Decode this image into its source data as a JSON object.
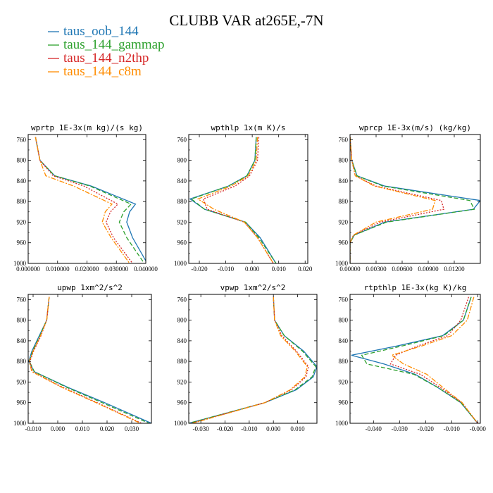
{
  "figure_title": "CLUBB VAR at265E,-7N",
  "legend": [
    {
      "label": "taus_oob_144",
      "color": "#1f77b4",
      "dash": "solid"
    },
    {
      "label": "taus_144_gammap",
      "color": "#2ca02c",
      "dash": "dashed"
    },
    {
      "label": "taus_144_n2thp",
      "color": "#d62728",
      "dash": "dotted"
    },
    {
      "label": "taus_144_c8m",
      "color": "#ff8c00",
      "dash": "dashdot"
    }
  ],
  "chart_data": [
    {
      "type": "line",
      "title": "wprtp  1E-3x(m kg)/(s kg)",
      "xlim": [
        0.0,
        0.04
      ],
      "ylim": [
        1000,
        750
      ],
      "xticks": [
        0.0,
        0.01,
        0.02,
        0.03,
        0.04
      ],
      "xtick_labels": [
        "0.000000",
        "0.010000",
        "0.020000",
        "0.030000",
        "0.040000"
      ],
      "yticks": [
        760,
        800,
        840,
        880,
        920,
        960,
        1000
      ],
      "ytick_labels": [
        "760",
        "800",
        "840",
        "880",
        "920",
        "960",
        "1000"
      ],
      "y": [
        755,
        800,
        830,
        850,
        885,
        900,
        920,
        950,
        1000
      ],
      "series": [
        {
          "name": "taus_oob_144",
          "values": [
            0.0025,
            0.004,
            0.009,
            0.0215,
            0.0365,
            0.0345,
            0.0335,
            0.0355,
            0.0405
          ]
        },
        {
          "name": "taus_144_gammap",
          "values": [
            0.0025,
            0.004,
            0.009,
            0.021,
            0.035,
            0.0325,
            0.031,
            0.0335,
            0.0395
          ]
        },
        {
          "name": "taus_144_n2thp",
          "values": [
            0.0025,
            0.004,
            0.0085,
            0.019,
            0.0305,
            0.028,
            0.0265,
            0.029,
            0.0355
          ]
        },
        {
          "name": "taus_144_c8m",
          "values": [
            0.0025,
            0.004,
            0.006,
            0.0155,
            0.0285,
            0.0262,
            0.0252,
            0.0282,
            0.0345
          ]
        }
      ]
    },
    {
      "type": "line",
      "title": "wpthlp  1x(m K)/s",
      "xlim": [
        -0.024,
        0.021
      ],
      "ylim": [
        1000,
        750
      ],
      "xticks": [
        -0.02,
        -0.01,
        0.0,
        0.01,
        0.02
      ],
      "xtick_labels": [
        "-0.020",
        "-0.010",
        "0.000",
        "0.010",
        "0.020"
      ],
      "yticks": [
        760,
        800,
        840,
        880,
        920,
        960,
        1000
      ],
      "ytick_labels": [
        "760",
        "800",
        "840",
        "880",
        "920",
        "960",
        "1000"
      ],
      "y": [
        755,
        800,
        830,
        850,
        875,
        895,
        920,
        950,
        1000
      ],
      "series": [
        {
          "name": "taus_oob_144",
          "values": [
            0.0015,
            0.001,
            -0.002,
            -0.009,
            -0.0235,
            -0.018,
            -0.0025,
            0.003,
            0.009
          ]
        },
        {
          "name": "taus_144_gammap",
          "values": [
            0.0015,
            0.001,
            -0.002,
            -0.009,
            -0.023,
            -0.018,
            -0.0025,
            0.0025,
            0.009
          ]
        },
        {
          "name": "taus_144_n2thp",
          "values": [
            0.0025,
            0.002,
            -0.001,
            -0.0065,
            -0.0185,
            -0.017,
            -0.003,
            0.002,
            0.008
          ]
        },
        {
          "name": "taus_144_c8m",
          "values": [
            0.002,
            0.0015,
            -0.0015,
            -0.008,
            -0.0205,
            -0.0145,
            -0.003,
            0.002,
            0.008
          ]
        }
      ]
    },
    {
      "type": "line",
      "title": "wprcp  1E-3x(m/s) (kg/kg)",
      "xlim": [
        0.0,
        0.015
      ],
      "ylim": [
        1000,
        750
      ],
      "xticks": [
        0.0,
        0.003,
        0.006,
        0.009,
        0.012
      ],
      "xtick_labels": [
        "0.00000",
        "0.00300",
        "0.00600",
        "0.00900",
        "0.01200"
      ],
      "yticks": [
        760,
        800,
        840,
        880,
        920,
        960,
        1000
      ],
      "ytick_labels": [
        "760",
        "800",
        "840",
        "880",
        "920",
        "960",
        "1000"
      ],
      "y": [
        755,
        800,
        830,
        850,
        878,
        895,
        920,
        945,
        960,
        1000
      ],
      "series": [
        {
          "name": "taus_oob_144",
          "values": [
            0.0,
            0.0002,
            0.0008,
            0.004,
            0.015,
            0.0142,
            0.004,
            0.0005,
            0.0,
            0.0
          ]
        },
        {
          "name": "taus_144_gammap",
          "values": [
            0.0,
            0.0002,
            0.0008,
            0.0038,
            0.0138,
            0.0143,
            0.0042,
            0.0005,
            0.0,
            0.0
          ]
        },
        {
          "name": "taus_144_n2thp",
          "values": [
            0.0,
            0.0002,
            0.0006,
            0.003,
            0.0105,
            0.0108,
            0.0035,
            0.0004,
            0.0,
            0.0
          ]
        },
        {
          "name": "taus_144_c8m",
          "values": [
            0.0,
            0.0002,
            0.0006,
            0.0028,
            0.0098,
            0.0095,
            0.003,
            0.0004,
            0.0,
            0.0
          ]
        }
      ]
    },
    {
      "type": "line",
      "title": "upwp  1xm^2/s^2",
      "xlim": [
        -0.012,
        0.038
      ],
      "ylim": [
        1000,
        750
      ],
      "xticks": [
        -0.01,
        0.0,
        0.01,
        0.02,
        0.03
      ],
      "xtick_labels": [
        "-0.010",
        "0.000",
        "0.010",
        "0.020",
        "0.030"
      ],
      "yticks": [
        760,
        800,
        840,
        880,
        920,
        960,
        1000
      ],
      "ytick_labels": [
        "760",
        "800",
        "840",
        "880",
        "920",
        "960",
        "1000"
      ],
      "y": [
        755,
        800,
        830,
        860,
        880,
        900,
        930,
        960,
        1000
      ],
      "series": [
        {
          "name": "taus_oob_144",
          "values": [
            -0.0035,
            -0.0045,
            -0.0075,
            -0.0105,
            -0.0118,
            -0.0095,
            0.004,
            0.019,
            0.038
          ]
        },
        {
          "name": "taus_144_gammap",
          "values": [
            -0.0035,
            -0.0045,
            -0.0072,
            -0.0102,
            -0.0115,
            -0.0095,
            0.0035,
            0.018,
            0.037
          ]
        },
        {
          "name": "taus_144_n2thp",
          "values": [
            -0.0035,
            -0.0045,
            -0.0068,
            -0.0098,
            -0.0113,
            -0.0102,
            0.002,
            0.016,
            0.034
          ]
        },
        {
          "name": "taus_144_c8m",
          "values": [
            -0.0035,
            -0.0045,
            -0.007,
            -0.01,
            -0.0116,
            -0.0105,
            0.0015,
            0.0155,
            0.0335
          ]
        }
      ]
    },
    {
      "type": "line",
      "title": "vpwp  1xm^2/s^2",
      "xlim": [
        -0.035,
        0.018
      ],
      "ylim": [
        1000,
        750
      ],
      "xticks": [
        -0.03,
        -0.02,
        -0.01,
        0.0,
        0.01
      ],
      "xtick_labels": [
        "-0.030",
        "-0.020",
        "-0.010",
        "0.000",
        "0.010"
      ],
      "yticks": [
        760,
        800,
        840,
        880,
        920,
        960,
        1000
      ],
      "ytick_labels": [
        "760",
        "800",
        "840",
        "880",
        "920",
        "960",
        "1000"
      ],
      "y": [
        755,
        800,
        830,
        860,
        890,
        910,
        935,
        960,
        1000
      ],
      "series": [
        {
          "name": "taus_oob_144",
          "values": [
            0.0,
            0.0005,
            0.0045,
            0.0125,
            0.018,
            0.0165,
            0.0095,
            -0.0035,
            -0.035
          ]
        },
        {
          "name": "taus_144_gammap",
          "values": [
            0.0,
            0.0005,
            0.0045,
            0.012,
            0.0175,
            0.016,
            0.009,
            -0.0035,
            -0.035
          ]
        },
        {
          "name": "taus_144_n2thp",
          "values": [
            0.0,
            0.0005,
            0.0035,
            0.0095,
            0.0145,
            0.0135,
            0.0075,
            -0.0035,
            -0.034
          ]
        },
        {
          "name": "taus_144_c8m",
          "values": [
            0.0,
            0.0005,
            0.003,
            0.009,
            0.014,
            0.013,
            0.007,
            -0.0035,
            -0.0335
          ]
        }
      ]
    },
    {
      "type": "line",
      "title": "rtpthlp  1E-3x(kg K)/kg",
      "xlim": [
        -0.049,
        0.001
      ],
      "ylim": [
        1000,
        750
      ],
      "xticks": [
        -0.04,
        -0.03,
        -0.02,
        -0.01,
        0.0
      ],
      "xtick_labels": [
        "-0.040",
        "-0.030",
        "-0.020",
        "-0.010",
        "-0.000"
      ],
      "yticks": [
        760,
        800,
        840,
        880,
        920,
        960,
        1000
      ],
      "ytick_labels": [
        "760",
        "800",
        "840",
        "880",
        "920",
        "960",
        "1000"
      ],
      "y": [
        755,
        800,
        830,
        850,
        868,
        885,
        905,
        930,
        960,
        1000
      ],
      "series": [
        {
          "name": "taus_oob_144",
          "values": [
            -0.0025,
            -0.0055,
            -0.0135,
            -0.031,
            -0.0485,
            -0.036,
            -0.024,
            -0.0155,
            -0.0065,
            0.0
          ]
        },
        {
          "name": "taus_144_gammap",
          "values": [
            -0.0025,
            -0.0055,
            -0.013,
            -0.029,
            -0.0445,
            -0.0425,
            -0.0245,
            -0.0155,
            -0.0065,
            0.0
          ]
        },
        {
          "name": "taus_144_n2thp",
          "values": [
            -0.0035,
            -0.0065,
            -0.0115,
            -0.023,
            -0.0315,
            -0.0335,
            -0.022,
            -0.0145,
            -0.006,
            0.0
          ]
        },
        {
          "name": "taus_144_c8m",
          "values": [
            -0.0015,
            -0.004,
            -0.01,
            -0.0215,
            -0.033,
            -0.0285,
            -0.0195,
            -0.0135,
            -0.006,
            0.0
          ]
        }
      ]
    }
  ]
}
